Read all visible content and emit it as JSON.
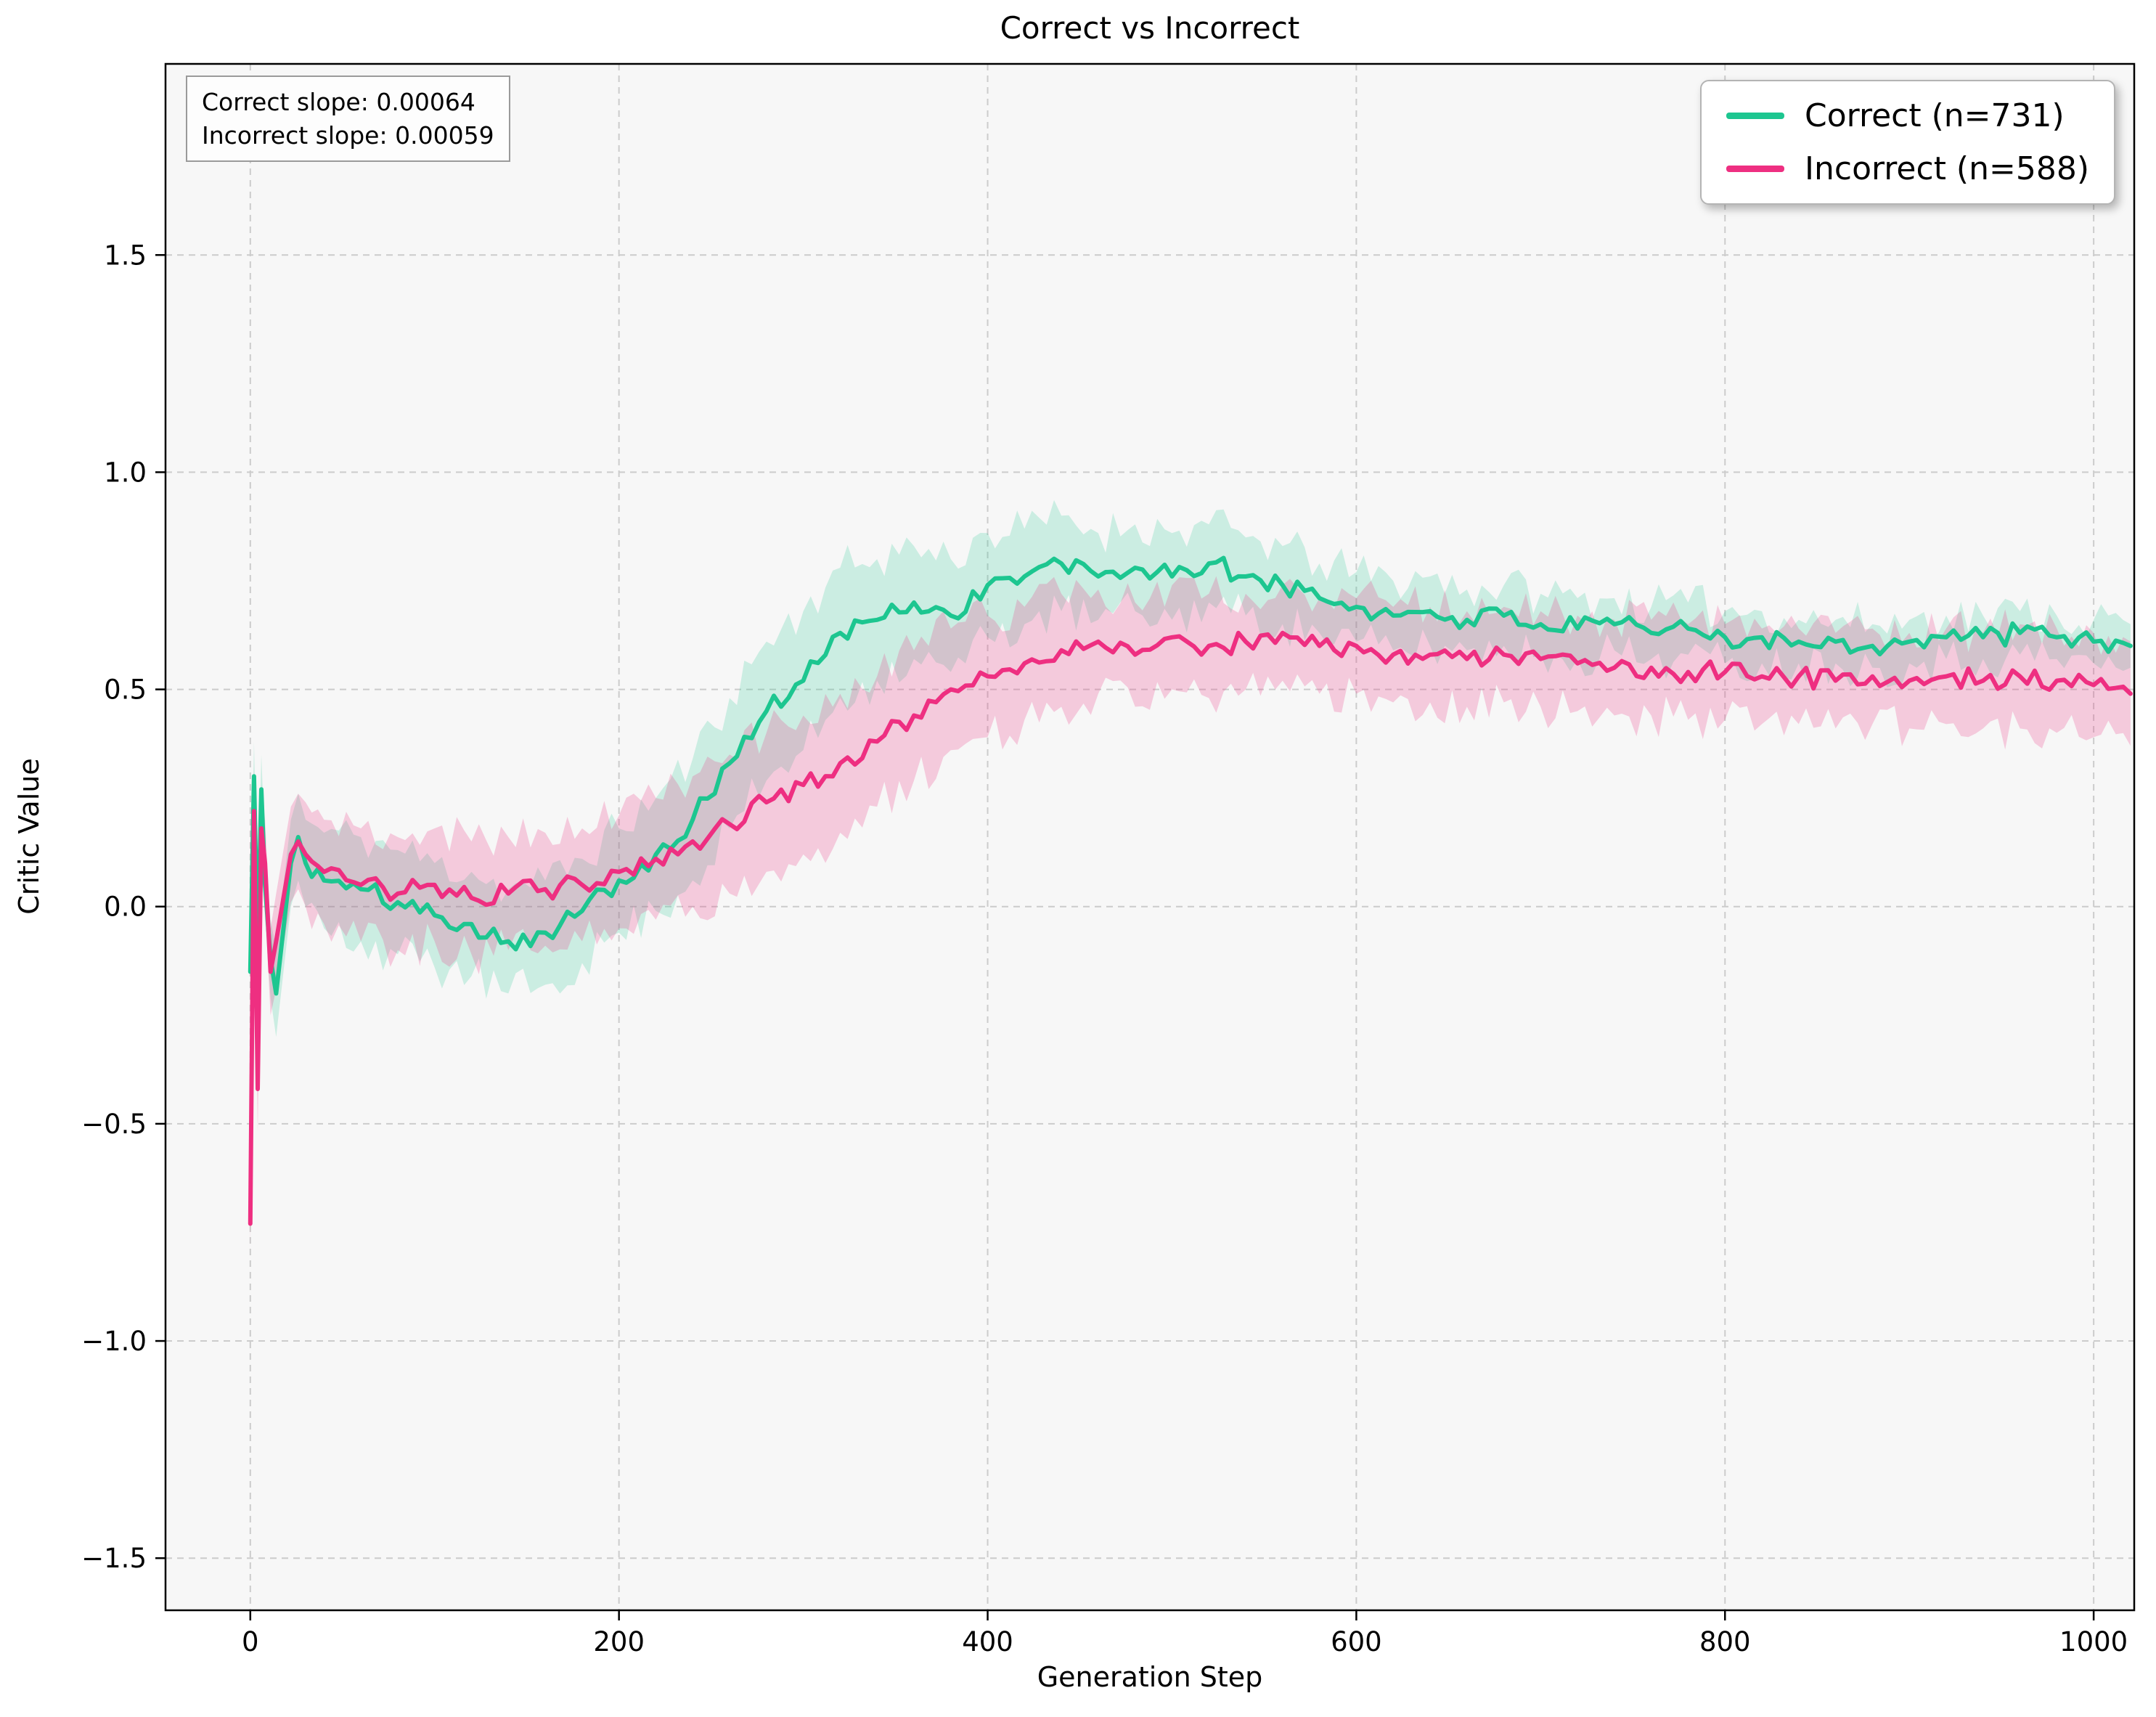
{
  "title": "Correct vs Incorrect",
  "annotation": {
    "line1": "Correct slope: 0.00064",
    "line2": "Incorrect slope: 0.00059"
  },
  "legend": {
    "entries": [
      {
        "label": "Correct (n=731)",
        "color": "#1dc690"
      },
      {
        "label": "Incorrect (n=588)",
        "color": "#ee2f81"
      }
    ]
  },
  "chart_data": {
    "type": "line",
    "title": "Correct vs Incorrect",
    "xlabel": "Generation Step",
    "ylabel": "Critic Value",
    "xlim": [
      -46,
      1022
    ],
    "ylim": [
      -1.62,
      1.94
    ],
    "xticks": [
      0,
      200,
      400,
      600,
      800,
      1000
    ],
    "yticks": [
      -1.5,
      -1.0,
      -0.5,
      0.0,
      0.5,
      1.0,
      1.5
    ],
    "ytick_labels": [
      "−1.5",
      "−1.0",
      "−0.5",
      "0.0",
      "0.5",
      "1.0",
      "1.5"
    ],
    "grid": true,
    "legend_position": "upper right",
    "colors": {
      "grid": "#cccccc",
      "plot_bg": "#f7f7f7",
      "spine": "#000000"
    },
    "visual_noise_amplitude": 0.025,
    "x": [
      0,
      2,
      4,
      6,
      8,
      11,
      14,
      18,
      22,
      26,
      30,
      40,
      60,
      80,
      100,
      120,
      140,
      160,
      180,
      200,
      220,
      240,
      260,
      280,
      300,
      320,
      340,
      360,
      380,
      400,
      420,
      440,
      460,
      480,
      500,
      520,
      540,
      560,
      580,
      600,
      620,
      640,
      660,
      680,
      700,
      720,
      740,
      760,
      780,
      800,
      820,
      840,
      860,
      880,
      900,
      920,
      940,
      960,
      980,
      1000,
      1020
    ],
    "series": [
      {
        "name": "Correct (n=731)",
        "color": "#1dc690",
        "band_opacity": 0.2,
        "values": [
          -0.15,
          0.3,
          -0.1,
          0.27,
          0.05,
          -0.12,
          -0.2,
          -0.05,
          0.1,
          0.16,
          0.1,
          0.06,
          0.04,
          0.01,
          -0.02,
          -0.04,
          -0.08,
          -0.06,
          -0.01,
          0.06,
          0.12,
          0.2,
          0.33,
          0.45,
          0.52,
          0.63,
          0.66,
          0.7,
          0.67,
          0.74,
          0.76,
          0.79,
          0.76,
          0.78,
          0.76,
          0.79,
          0.76,
          0.74,
          0.71,
          0.69,
          0.67,
          0.68,
          0.66,
          0.67,
          0.65,
          0.64,
          0.65,
          0.63,
          0.64,
          0.62,
          0.62,
          0.61,
          0.61,
          0.6,
          0.61,
          0.62,
          0.62,
          0.63,
          0.62,
          0.61,
          0.6
        ],
        "band_halfwidth": [
          0.05,
          0.08,
          0.08,
          0.08,
          0.08,
          0.09,
          0.1,
          0.1,
          0.1,
          0.1,
          0.1,
          0.11,
          0.12,
          0.12,
          0.12,
          0.12,
          0.12,
          0.12,
          0.12,
          0.12,
          0.13,
          0.14,
          0.15,
          0.16,
          0.16,
          0.15,
          0.14,
          0.13,
          0.13,
          0.12,
          0.11,
          0.11,
          0.1,
          0.1,
          0.1,
          0.09,
          0.09,
          0.09,
          0.08,
          0.08,
          0.08,
          0.08,
          0.07,
          0.07,
          0.07,
          0.07,
          0.06,
          0.06,
          0.06,
          0.06,
          0.06,
          0.05,
          0.05,
          0.05,
          0.05,
          0.05,
          0.05,
          0.05,
          0.05,
          0.05,
          0.05
        ]
      },
      {
        "name": "Incorrect (n=588)",
        "color": "#ee2f81",
        "band_opacity": 0.22,
        "values": [
          -0.73,
          0.22,
          -0.42,
          0.18,
          0.1,
          -0.15,
          -0.08,
          0.02,
          0.12,
          0.15,
          0.12,
          0.08,
          0.05,
          0.03,
          0.05,
          0.02,
          0.03,
          0.04,
          0.05,
          0.08,
          0.11,
          0.15,
          0.19,
          0.24,
          0.28,
          0.33,
          0.38,
          0.44,
          0.5,
          0.53,
          0.56,
          0.59,
          0.61,
          0.58,
          0.62,
          0.6,
          0.61,
          0.63,
          0.6,
          0.6,
          0.58,
          0.58,
          0.57,
          0.58,
          0.57,
          0.56,
          0.55,
          0.55,
          0.54,
          0.54,
          0.53,
          0.53,
          0.52,
          0.53,
          0.52,
          0.53,
          0.52,
          0.53,
          0.52,
          0.51,
          0.49
        ],
        "band_halfwidth": [
          0.06,
          0.1,
          0.1,
          0.1,
          0.1,
          0.1,
          0.11,
          0.11,
          0.11,
          0.11,
          0.12,
          0.12,
          0.13,
          0.13,
          0.13,
          0.13,
          0.13,
          0.13,
          0.13,
          0.13,
          0.14,
          0.15,
          0.16,
          0.16,
          0.16,
          0.16,
          0.15,
          0.15,
          0.14,
          0.14,
          0.13,
          0.13,
          0.12,
          0.12,
          0.12,
          0.12,
          0.11,
          0.11,
          0.11,
          0.11,
          0.11,
          0.11,
          0.11,
          0.11,
          0.11,
          0.11,
          0.11,
          0.11,
          0.11,
          0.11,
          0.11,
          0.11,
          0.11,
          0.11,
          0.11,
          0.11,
          0.11,
          0.12,
          0.12,
          0.12,
          0.12
        ]
      }
    ],
    "annotations": [
      "Correct slope: 0.00064",
      "Incorrect slope: 0.00059"
    ]
  }
}
